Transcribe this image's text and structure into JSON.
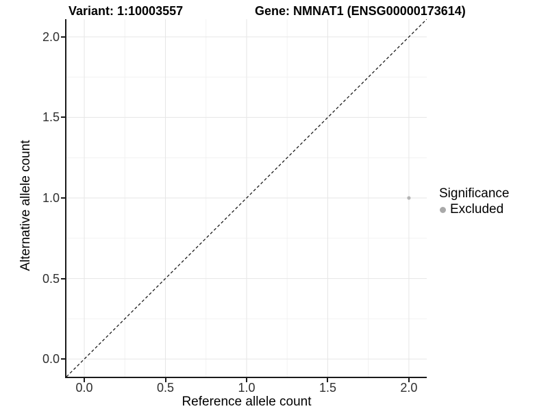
{
  "chart_data": {
    "type": "scatter",
    "title_left": "Variant: 1:10003557",
    "title_right": "Gene: NMNAT1 (ENSG00000173614)",
    "xlabel": "Reference allele count",
    "ylabel": "Alternative allele count",
    "xlim": [
      -0.11,
      2.11
    ],
    "ylim": [
      -0.11,
      2.11
    ],
    "x_tick_values": [
      0,
      0.5,
      1,
      1.5,
      2
    ],
    "x_tick_labels": [
      "0.0",
      "0.5",
      "1.0",
      "1.5",
      "2.0"
    ],
    "y_tick_values": [
      0,
      0.5,
      1,
      1.5,
      2
    ],
    "y_tick_labels": [
      "0.0",
      "0.5",
      "1.0",
      "1.5",
      "2.0"
    ],
    "minor_grid_values": [
      0.25,
      0.75,
      1.25,
      1.75
    ],
    "grid": {
      "show": true,
      "major_color": "#e6e6e6",
      "minor_color": "#f2f2f2"
    },
    "identity_line": {
      "style": "dashed",
      "color": "#1a1a1a",
      "from": [
        -0.11,
        -0.11
      ],
      "to": [
        2.11,
        2.11
      ]
    },
    "points": [
      {
        "x": 2.0,
        "y": 1.0,
        "significance": "Excluded",
        "color": "#b4b4b4",
        "radius": 2.6
      }
    ],
    "legend": {
      "position": "right",
      "title": "Significance",
      "items": [
        {
          "label": "Excluded",
          "color": "#a9a9a9"
        }
      ]
    }
  }
}
